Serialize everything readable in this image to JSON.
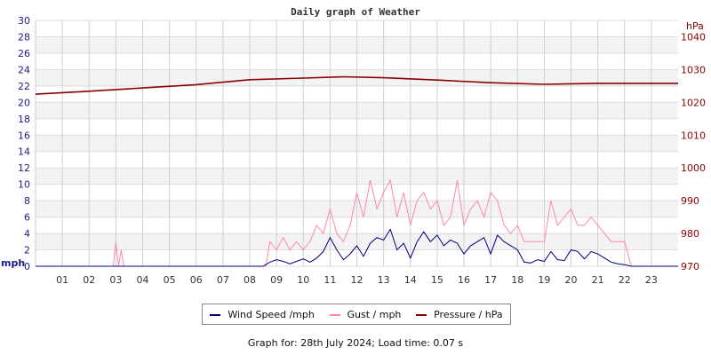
{
  "chart_data": {
    "type": "line",
    "title": "Daily graph of Weather",
    "xlabel": "",
    "x_ticks": [
      "01",
      "02",
      "03",
      "04",
      "05",
      "06",
      "07",
      "08",
      "09",
      "10",
      "11",
      "12",
      "13",
      "14",
      "15",
      "16",
      "17",
      "18",
      "19",
      "20",
      "21",
      "22",
      "23"
    ],
    "xlim": [
      0,
      24
    ],
    "y_left": {
      "label": "mph",
      "lim": [
        0,
        30
      ],
      "ticks": [
        0,
        2,
        4,
        6,
        8,
        10,
        12,
        14,
        16,
        18,
        20,
        22,
        24,
        26,
        28,
        30
      ],
      "color": "#1a1a8c"
    },
    "y_right": {
      "label": "hPa",
      "lim": [
        970,
        1045
      ],
      "ticks": [
        970,
        980,
        990,
        1000,
        1010,
        1020,
        1030,
        1040
      ],
      "color": "#8b0000"
    },
    "grid": true,
    "legend_placement": "bottom",
    "series": [
      {
        "name": "Wind Speed /mph",
        "axis": "left",
        "color": "#000080",
        "points": [
          [
            0,
            0
          ],
          [
            8.5,
            0
          ],
          [
            8.75,
            0.5
          ],
          [
            9,
            0.8
          ],
          [
            9.25,
            0.6
          ],
          [
            9.5,
            0.3
          ],
          [
            9.75,
            0.6
          ],
          [
            10,
            0.9
          ],
          [
            10.25,
            0.5
          ],
          [
            10.5,
            1.0
          ],
          [
            10.75,
            1.8
          ],
          [
            11,
            3.5
          ],
          [
            11.25,
            2.0
          ],
          [
            11.5,
            0.8
          ],
          [
            11.75,
            1.5
          ],
          [
            12,
            2.5
          ],
          [
            12.25,
            1.2
          ],
          [
            12.5,
            2.8
          ],
          [
            12.75,
            3.5
          ],
          [
            13,
            3.2
          ],
          [
            13.25,
            4.5
          ],
          [
            13.5,
            2.0
          ],
          [
            13.75,
            2.8
          ],
          [
            14,
            1.0
          ],
          [
            14.25,
            3.0
          ],
          [
            14.5,
            4.2
          ],
          [
            14.75,
            3.0
          ],
          [
            15,
            3.8
          ],
          [
            15.25,
            2.5
          ],
          [
            15.5,
            3.2
          ],
          [
            15.75,
            2.8
          ],
          [
            16,
            1.5
          ],
          [
            16.25,
            2.5
          ],
          [
            16.5,
            3.0
          ],
          [
            16.75,
            3.5
          ],
          [
            17,
            1.5
          ],
          [
            17.25,
            3.8
          ],
          [
            17.5,
            3.0
          ],
          [
            17.75,
            2.5
          ],
          [
            18,
            2.0
          ],
          [
            18.25,
            0.5
          ],
          [
            18.5,
            0.4
          ],
          [
            18.75,
            0.8
          ],
          [
            19,
            0.6
          ],
          [
            19.25,
            1.8
          ],
          [
            19.5,
            0.8
          ],
          [
            19.75,
            0.7
          ],
          [
            20,
            2.0
          ],
          [
            20.25,
            1.8
          ],
          [
            20.5,
            0.9
          ],
          [
            20.75,
            1.8
          ],
          [
            21,
            1.5
          ],
          [
            21.25,
            1.0
          ],
          [
            21.5,
            0.5
          ],
          [
            21.75,
            0.3
          ],
          [
            22,
            0.2
          ],
          [
            22.25,
            0
          ],
          [
            24,
            0
          ]
        ]
      },
      {
        "name": "Gust / mph",
        "axis": "left",
        "color": "#ff88aa",
        "points": [
          [
            0,
            0
          ],
          [
            2.9,
            0
          ],
          [
            3.0,
            3.0
          ],
          [
            3.1,
            0
          ],
          [
            3.2,
            2.0
          ],
          [
            3.3,
            0
          ],
          [
            8.6,
            0
          ],
          [
            8.75,
            3
          ],
          [
            9,
            2
          ],
          [
            9.25,
            3.5
          ],
          [
            9.5,
            2
          ],
          [
            9.75,
            3
          ],
          [
            10,
            2
          ],
          [
            10.25,
            3
          ],
          [
            10.5,
            5
          ],
          [
            10.75,
            4
          ],
          [
            11,
            7
          ],
          [
            11.25,
            4
          ],
          [
            11.5,
            3
          ],
          [
            11.75,
            5
          ],
          [
            12,
            9
          ],
          [
            12.25,
            6
          ],
          [
            12.5,
            10.5
          ],
          [
            12.75,
            7
          ],
          [
            13,
            9
          ],
          [
            13.25,
            10.5
          ],
          [
            13.5,
            6
          ],
          [
            13.75,
            9
          ],
          [
            14,
            5
          ],
          [
            14.25,
            8
          ],
          [
            14.5,
            9
          ],
          [
            14.75,
            7
          ],
          [
            15,
            8
          ],
          [
            15.25,
            5
          ],
          [
            15.5,
            6
          ],
          [
            15.75,
            10.5
          ],
          [
            16,
            5
          ],
          [
            16.25,
            7
          ],
          [
            16.5,
            8
          ],
          [
            16.75,
            6
          ],
          [
            17,
            9
          ],
          [
            17.25,
            8
          ],
          [
            17.5,
            5
          ],
          [
            17.75,
            4
          ],
          [
            18,
            5
          ],
          [
            18.25,
            3
          ],
          [
            18.5,
            3
          ],
          [
            18.75,
            3
          ],
          [
            19,
            3
          ],
          [
            19.25,
            8
          ],
          [
            19.5,
            5
          ],
          [
            19.75,
            6
          ],
          [
            20,
            7
          ],
          [
            20.25,
            5
          ],
          [
            20.5,
            5
          ],
          [
            20.75,
            6
          ],
          [
            21,
            5
          ],
          [
            21.25,
            4
          ],
          [
            21.5,
            3
          ],
          [
            21.75,
            3
          ],
          [
            22,
            3
          ],
          [
            22.25,
            0
          ],
          [
            24,
            0
          ]
        ]
      },
      {
        "name": "Pressure / hPa",
        "axis": "right",
        "color": "#8b0000",
        "points": [
          [
            0,
            1022.5
          ],
          [
            2,
            1023.4
          ],
          [
            4,
            1024.4
          ],
          [
            6,
            1025.4
          ],
          [
            8,
            1026.9
          ],
          [
            10,
            1027.4
          ],
          [
            11.5,
            1027.8
          ],
          [
            13,
            1027.5
          ],
          [
            15,
            1026.8
          ],
          [
            17,
            1026.0
          ],
          [
            19,
            1025.5
          ],
          [
            21,
            1025.8
          ],
          [
            24,
            1025.8
          ]
        ]
      }
    ]
  },
  "footer": "Graph for: 28th July 2024; Load time: 0.07 s"
}
